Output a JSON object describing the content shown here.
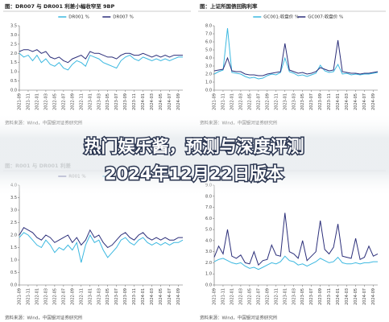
{
  "banner": {
    "line1": "热门娱乐酱，预测与深度评测",
    "line2": "2024年12月22日版本"
  },
  "chart_data": [
    {
      "type": "line",
      "title": "图：DR007 与 DR001 利差小幅收窄至 9BP",
      "source": "资料来源：Wind，中国银河证券研究所",
      "categories": [
        "2021-09",
        null,
        "2021-11",
        null,
        "2022-01",
        null,
        "2022-03",
        null,
        "2022-05",
        null,
        "2022-07",
        null,
        "2022-09",
        null,
        "2022-11",
        null,
        "2023-01",
        null,
        "2023-03",
        null,
        "2023-05",
        null,
        "2023-07",
        null,
        "2023-09",
        null,
        "2023-11",
        null,
        "2024-01",
        null,
        "2024-03",
        null,
        "2024-05",
        null,
        "2024-07",
        null,
        "2024-09",
        null
      ],
      "series": [
        {
          "name": "DR001 %",
          "color": "#3bb8e0",
          "values": [
            2.0,
            1.8,
            1.9,
            1.6,
            1.9,
            1.5,
            1.7,
            1.4,
            1.3,
            1.5,
            1.2,
            1.1,
            1.4,
            1.6,
            1.5,
            1.3,
            1.9,
            1.8,
            1.7,
            1.5,
            1.4,
            1.3,
            1.2,
            1.6,
            1.8,
            1.9,
            1.7,
            1.6,
            1.8,
            1.7,
            1.6,
            1.7,
            1.6,
            1.7,
            1.6,
            1.7,
            1.8,
            1.8
          ]
        },
        {
          "name": "DR007 %",
          "color": "#2c2f7a",
          "values": [
            2.1,
            2.2,
            2.2,
            2.1,
            2.2,
            2.0,
            2.1,
            1.8,
            1.7,
            1.8,
            1.6,
            1.5,
            1.7,
            1.8,
            1.9,
            1.7,
            2.1,
            2.0,
            2.0,
            1.9,
            1.8,
            1.8,
            1.7,
            1.9,
            2.0,
            2.0,
            1.9,
            1.9,
            2.0,
            1.9,
            1.8,
            1.9,
            1.8,
            1.9,
            1.8,
            1.9,
            1.9,
            1.9
          ]
        }
      ],
      "ylim": [
        0,
        3.5
      ],
      "yticks": [
        {
          "value": 0,
          "label": "0.0"
        },
        {
          "value": 0.5,
          "label": "0.5"
        },
        {
          "value": 1,
          "label": "1.0"
        },
        {
          "value": 1.5,
          "label": "1.5"
        },
        {
          "value": 2,
          "label": "2.0"
        },
        {
          "value": 2.5,
          "label": "2.5"
        },
        {
          "value": 3,
          "label": "3.0"
        },
        {
          "value": 3.5,
          "label": "3.5"
        }
      ]
    },
    {
      "type": "line",
      "title": "图：上证所国债回购利率",
      "source": "资料来源：Wind，中国银河证券研究所",
      "categories": [
        "2021-09",
        null,
        "2021-11",
        null,
        "2022-01",
        null,
        "2022-03",
        null,
        "2022-05",
        null,
        "2022-07",
        null,
        "2022-09",
        null,
        "2022-11",
        null,
        "2023-01",
        null,
        "2023-03",
        null,
        "2023-05",
        null,
        "2023-07",
        null,
        "2023-09",
        null,
        "2023-11",
        null,
        "2024-01",
        null,
        "2024-03",
        null,
        "2024-05",
        null,
        "2024-07",
        null,
        "2024-09",
        null
      ],
      "series": [
        {
          "name": "GC001:收盘价 %",
          "color": "#3bb8e0",
          "values": [
            2.0,
            2.3,
            2.5,
            7.7,
            2.2,
            2.1,
            2.0,
            1.7,
            1.5,
            1.6,
            1.4,
            1.5,
            1.8,
            2.0,
            1.9,
            2.2,
            4.0,
            2.3,
            2.1,
            1.8,
            1.9,
            1.7,
            1.9,
            2.1,
            3.1,
            2.4,
            2.2,
            2.3,
            3.2,
            2.0,
            2.1,
            1.9,
            2.0,
            1.9,
            2.0,
            2.0,
            2.1,
            2.2
          ]
        },
        {
          "name": "GC007:收盘价 %",
          "color": "#2c2f7a",
          "values": [
            2.4,
            2.5,
            2.6,
            4.0,
            2.4,
            2.3,
            2.3,
            2.0,
            1.9,
            1.9,
            1.8,
            1.8,
            2.0,
            2.1,
            2.2,
            2.3,
            5.8,
            2.5,
            2.3,
            2.1,
            2.2,
            2.0,
            2.1,
            2.3,
            2.8,
            2.6,
            2.4,
            2.5,
            6.2,
            2.3,
            2.2,
            2.1,
            2.1,
            2.0,
            2.1,
            2.1,
            2.2,
            2.3
          ]
        }
      ],
      "ylim": [
        0,
        8
      ],
      "yticks": [
        {
          "value": 0,
          "label": "0.0"
        },
        {
          "value": 1,
          "label": "1.0"
        },
        {
          "value": 2,
          "label": "2.0"
        },
        {
          "value": 3,
          "label": "3.0"
        },
        {
          "value": 4,
          "label": "4.0"
        },
        {
          "value": 5,
          "label": "5.0"
        },
        {
          "value": 6,
          "label": "6.0"
        },
        {
          "value": 7,
          "label": "7.0"
        },
        {
          "value": 8,
          "label": "8.0"
        }
      ]
    },
    {
      "type": "line",
      "title": "图：R001 与 DR001 利差",
      "source": "资料来源：Wind，中国银河证券研究所",
      "categories": [
        "2021-09",
        null,
        "2021-11",
        null,
        "2022-01",
        null,
        "2022-03",
        null,
        "2022-05",
        null,
        "2022-07",
        null,
        "2022-09",
        null,
        "2022-11",
        null,
        "2023-01",
        null,
        "2023-03",
        null,
        "2023-05",
        null,
        "2023-07",
        null,
        "2023-09",
        null,
        "2023-11",
        null,
        "2024-01",
        null,
        "2024-03",
        null,
        "2024-05",
        null,
        "2024-07",
        null,
        "2024-09",
        null
      ],
      "series": [
        {
          "name": "R001 %",
          "color": "#2c2f7a",
          "values": [
            2.0,
            2.3,
            2.2,
            2.1,
            1.9,
            1.8,
            2.0,
            1.9,
            1.7,
            1.8,
            1.9,
            2.0,
            1.7,
            1.9,
            1.6,
            1.8,
            2.2,
            1.9,
            2.0,
            1.7,
            1.5,
            1.6,
            1.8,
            2.0,
            2.1,
            1.9,
            1.8,
            2.0,
            2.1,
            1.9,
            1.8,
            1.9,
            1.8,
            1.9,
            1.8,
            1.8,
            1.9,
            1.9
          ]
        },
        {
          "name": "DR001 %",
          "color": "#3bb8e0",
          "values": [
            1.9,
            2.1,
            2.0,
            1.8,
            1.6,
            1.5,
            1.8,
            1.6,
            1.3,
            1.5,
            1.4,
            1.6,
            1.4,
            1.7,
            0.9,
            1.6,
            2.0,
            1.7,
            1.8,
            1.4,
            1.1,
            1.3,
            1.5,
            1.8,
            1.9,
            1.7,
            1.6,
            1.8,
            1.9,
            1.7,
            1.6,
            1.7,
            1.6,
            1.7,
            1.6,
            1.7,
            1.7,
            1.8
          ]
        }
      ],
      "ylim": [
        0,
        4
      ],
      "yticks": [
        {
          "value": 0,
          "label": "0.0"
        },
        {
          "value": 0.5,
          "label": "0.5"
        },
        {
          "value": 1,
          "label": "1.0"
        },
        {
          "value": 1.5,
          "label": "1.5"
        },
        {
          "value": 2,
          "label": "2.0"
        },
        {
          "value": 2.5,
          "label": "2.5"
        },
        {
          "value": 3,
          "label": "3.0"
        },
        {
          "value": 3.5,
          "label": "3.5"
        },
        {
          "value": 4,
          "label": "4.0"
        }
      ]
    },
    {
      "type": "line",
      "source": "资料来源：Wind，中国银河证券研究所",
      "categories": [
        "2021-09",
        null,
        "2021-11",
        null,
        "2022-01",
        null,
        "2022-03",
        null,
        "2022-05",
        null,
        "2022-07",
        null,
        "2022-09",
        null,
        "2022-11",
        null,
        "2023-01",
        null,
        "2023-03",
        null,
        "2023-05",
        null,
        "2023-07",
        null,
        "2023-09",
        null,
        "2023-11",
        null,
        "2024-01",
        null,
        "2024-03",
        null,
        "2024-05",
        null,
        "2024-07",
        null,
        "2024-09",
        null
      ],
      "series": [
        {
          "color": "#3bb8e0",
          "values": [
            2.1,
            2.3,
            2.4,
            2.2,
            2.0,
            1.9,
            2.0,
            1.7,
            1.5,
            1.6,
            1.4,
            1.6,
            1.8,
            2.0,
            1.9,
            2.1,
            2.6,
            2.2,
            2.1,
            1.8,
            1.9,
            1.7,
            1.9,
            2.1,
            2.4,
            2.2,
            2.0,
            2.1,
            2.5,
            2.0,
            1.9,
            1.9,
            2.0,
            1.9,
            2.0,
            2.0,
            2.1,
            2.1
          ]
        },
        {
          "color": "#2c2f7a",
          "values": [
            2.5,
            3.5,
            2.8,
            5.0,
            2.6,
            2.4,
            2.7,
            2.0,
            1.9,
            3.0,
            1.8,
            2.2,
            2.3,
            3.6,
            2.7,
            2.6,
            6.5,
            3.0,
            2.8,
            2.4,
            4.0,
            2.2,
            2.6,
            3.0,
            5.8,
            3.2,
            2.8,
            3.4,
            5.5,
            2.6,
            2.5,
            2.4,
            4.2,
            2.3,
            2.5,
            3.5,
            2.6,
            2.8
          ]
        }
      ],
      "ylim": [
        0,
        9
      ],
      "yticks": [
        {
          "value": 0,
          "label": "0.0"
        },
        {
          "value": 1,
          "label": "1.0"
        },
        {
          "value": 2,
          "label": "2.0"
        },
        {
          "value": 3,
          "label": "3.0"
        },
        {
          "value": 4,
          "label": "4.0"
        },
        {
          "value": 5,
          "label": "5.0"
        },
        {
          "value": 6,
          "label": "6.0"
        },
        {
          "value": 7,
          "label": "7.0"
        },
        {
          "value": 8,
          "label": "8.0"
        },
        {
          "value": 9,
          "label": "9.0"
        }
      ]
    }
  ]
}
